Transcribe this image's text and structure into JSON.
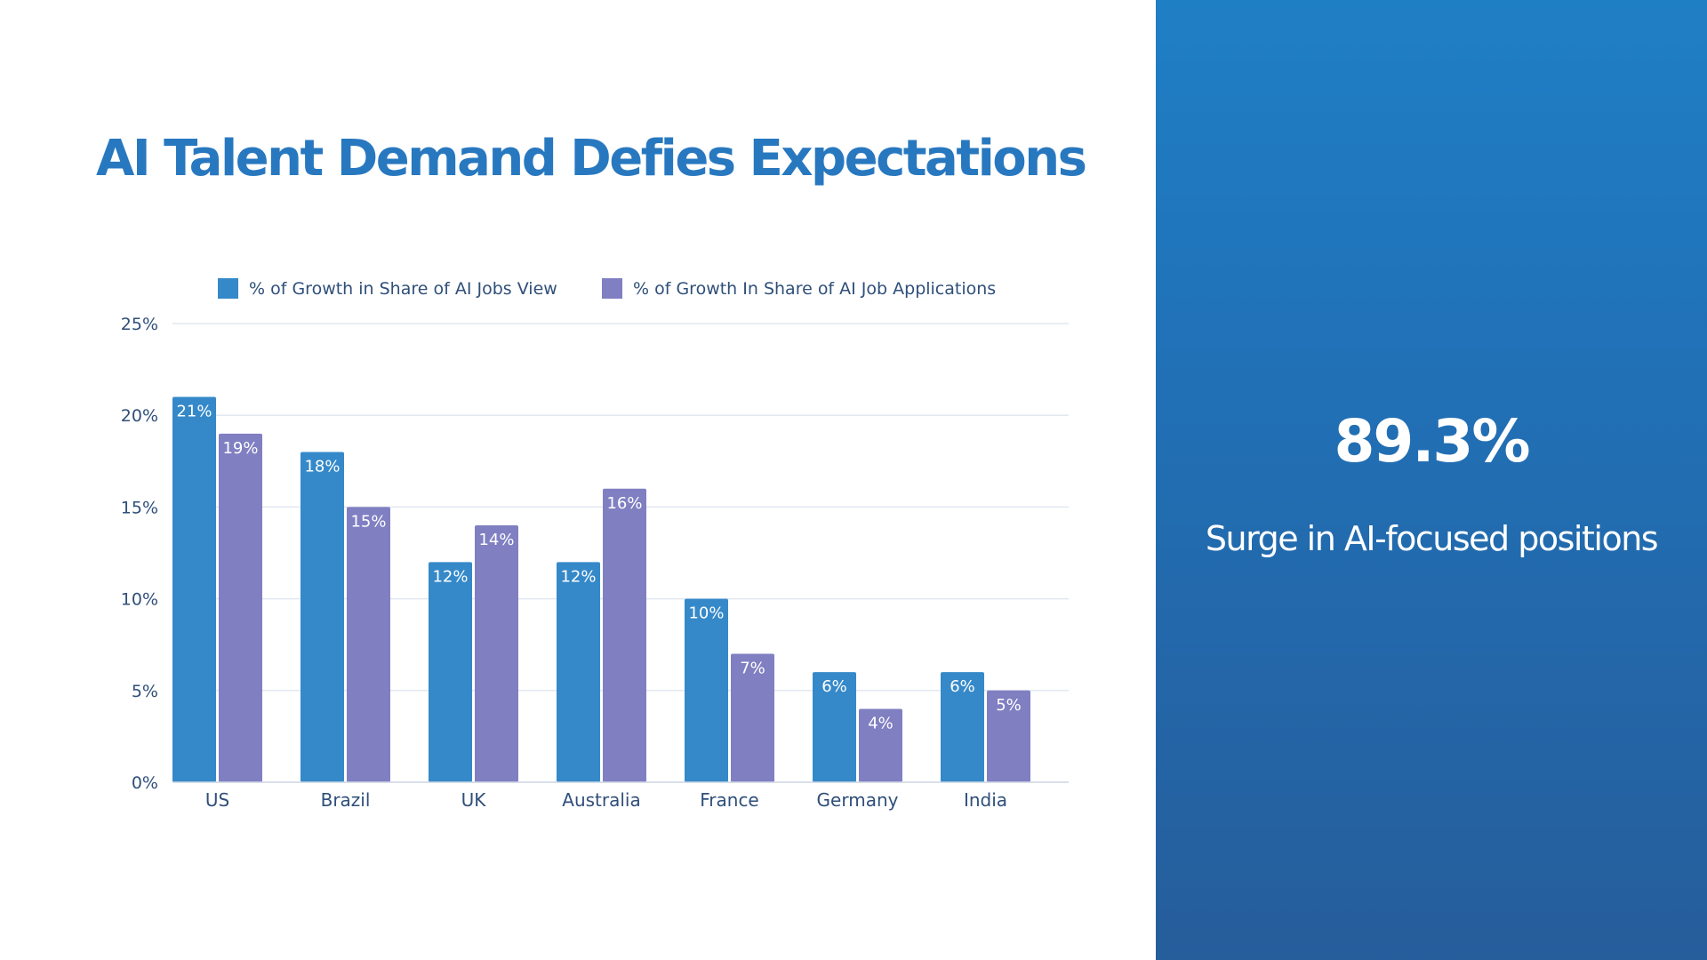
{
  "slide": {
    "title": "AI Talent Demand Defies Expectations"
  },
  "stat": {
    "value": "89.3%",
    "caption": "Surge in AI-focused positions"
  },
  "colors": {
    "title": "#2878C0",
    "series1": "#3589C9",
    "series2": "#807FC2",
    "axis_text": "#2F4F7A",
    "gridline": "#E1E8F1",
    "panel_top": "#1F7FC5",
    "panel_bottom": "#265D9B"
  },
  "chart_data": {
    "type": "bar",
    "title": "",
    "xlabel": "",
    "ylabel": "",
    "categories": [
      "US",
      "Brazil",
      "UK",
      "Australia",
      "France",
      "Germany",
      "India"
    ],
    "series": [
      {
        "name": "% of Growth in Share of AI Jobs View",
        "values": [
          21,
          18,
          12,
          12,
          10,
          6,
          6
        ],
        "labels": [
          "21%",
          "18%",
          "12%",
          "12%",
          "10%",
          "6%",
          "6%"
        ]
      },
      {
        "name": "% of Growth In Share of AI Job Applications",
        "values": [
          19,
          15,
          14,
          16,
          7,
          4,
          5
        ],
        "labels": [
          "19%",
          "15%",
          "14%",
          "16%",
          "7%",
          "4%",
          "5%"
        ]
      }
    ],
    "ylim": [
      0,
      25
    ],
    "yticks": [
      0,
      5,
      10,
      15,
      20,
      25
    ],
    "ytick_labels": [
      "0%",
      "5%",
      "10%",
      "15%",
      "20%",
      "25%"
    ],
    "grid": true,
    "legend_position": "top"
  }
}
